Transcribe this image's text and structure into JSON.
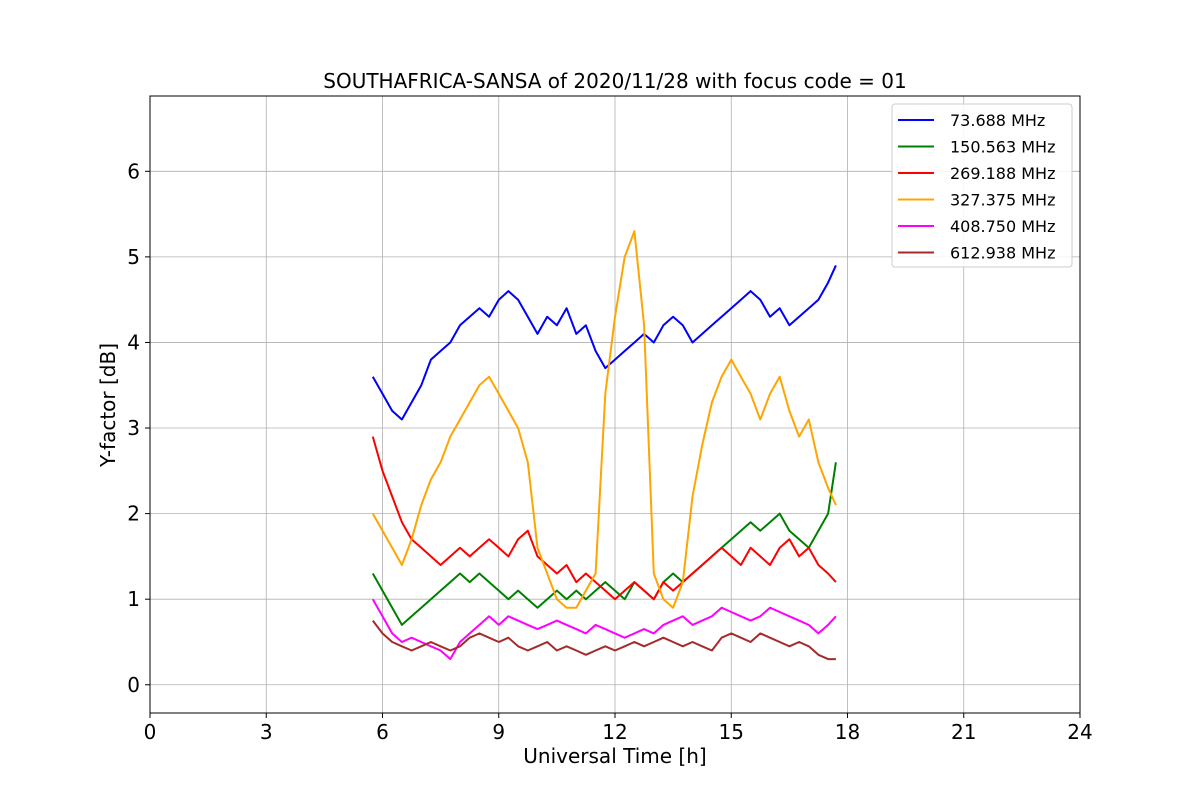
{
  "chart_data": {
    "type": "line",
    "title": "SOUTHAFRICA-SANSA of 2020/11/28 with focus code = 01",
    "xlabel": "Universal Time [h]",
    "ylabel": "Y-factor [dB]",
    "xlim": [
      0,
      24
    ],
    "ylim": [
      -0.33,
      6.88
    ],
    "xticks": [
      0,
      3,
      6,
      9,
      12,
      15,
      18,
      21,
      24
    ],
    "yticks": [
      0,
      1,
      2,
      3,
      4,
      5,
      6
    ],
    "grid": true,
    "legend_position": "top-right",
    "series": [
      {
        "name": " 73.688 MHz",
        "color": "#0000ff",
        "x": [
          5.75,
          6.0,
          6.25,
          6.5,
          6.75,
          7.0,
          7.25,
          7.5,
          7.75,
          8.0,
          8.25,
          8.5,
          8.75,
          9.0,
          9.25,
          9.5,
          9.75,
          10.0,
          10.25,
          10.5,
          10.75,
          11.0,
          11.25,
          11.5,
          11.75,
          12.0,
          12.25,
          12.5,
          12.75,
          13.0,
          13.25,
          13.5,
          13.75,
          14.0,
          14.25,
          14.5,
          14.75,
          15.0,
          15.25,
          15.5,
          15.75,
          16.0,
          16.25,
          16.5,
          16.75,
          17.0,
          17.25,
          17.5,
          17.7
        ],
        "y": [
          3.6,
          3.4,
          3.2,
          3.1,
          3.3,
          3.5,
          3.8,
          3.9,
          4.0,
          4.2,
          4.3,
          4.4,
          4.3,
          4.5,
          4.6,
          4.5,
          4.3,
          4.1,
          4.3,
          4.2,
          4.4,
          4.1,
          4.2,
          3.9,
          3.7,
          3.8,
          3.9,
          4.0,
          4.1,
          4.0,
          4.2,
          4.3,
          4.2,
          4.0,
          4.1,
          4.2,
          4.3,
          4.4,
          4.5,
          4.6,
          4.5,
          4.3,
          4.4,
          4.2,
          4.3,
          4.4,
          4.5,
          4.7,
          4.9
        ]
      },
      {
        "name": "150.563 MHz",
        "color": "#008000",
        "x": [
          5.75,
          6.0,
          6.25,
          6.5,
          6.75,
          7.0,
          7.25,
          7.5,
          7.75,
          8.0,
          8.25,
          8.5,
          8.75,
          9.0,
          9.25,
          9.5,
          9.75,
          10.0,
          10.25,
          10.5,
          10.75,
          11.0,
          11.25,
          11.5,
          11.75,
          12.0,
          12.25,
          12.5,
          12.75,
          13.0,
          13.25,
          13.5,
          13.75,
          14.0,
          14.25,
          14.5,
          14.75,
          15.0,
          15.25,
          15.5,
          15.75,
          16.0,
          16.25,
          16.5,
          16.75,
          17.0,
          17.25,
          17.5,
          17.7
        ],
        "y": [
          1.3,
          1.1,
          0.9,
          0.7,
          0.8,
          0.9,
          1.0,
          1.1,
          1.2,
          1.3,
          1.2,
          1.3,
          1.2,
          1.1,
          1.0,
          1.1,
          1.0,
          0.9,
          1.0,
          1.1,
          1.0,
          1.1,
          1.0,
          1.1,
          1.2,
          1.1,
          1.0,
          1.2,
          1.1,
          1.0,
          1.2,
          1.3,
          1.2,
          1.3,
          1.4,
          1.5,
          1.6,
          1.7,
          1.8,
          1.9,
          1.8,
          1.9,
          2.0,
          1.8,
          1.7,
          1.6,
          1.8,
          2.0,
          2.6
        ]
      },
      {
        "name": "269.188 MHz",
        "color": "#ff0000",
        "x": [
          5.75,
          6.0,
          6.25,
          6.5,
          6.75,
          7.0,
          7.25,
          7.5,
          7.75,
          8.0,
          8.25,
          8.5,
          8.75,
          9.0,
          9.25,
          9.5,
          9.75,
          10.0,
          10.25,
          10.5,
          10.75,
          11.0,
          11.25,
          11.5,
          11.75,
          12.0,
          12.25,
          12.5,
          12.75,
          13.0,
          13.25,
          13.5,
          13.75,
          14.0,
          14.25,
          14.5,
          14.75,
          15.0,
          15.25,
          15.5,
          15.75,
          16.0,
          16.25,
          16.5,
          16.75,
          17.0,
          17.25,
          17.5,
          17.7
        ],
        "y": [
          2.9,
          2.5,
          2.2,
          1.9,
          1.7,
          1.6,
          1.5,
          1.4,
          1.5,
          1.6,
          1.5,
          1.6,
          1.7,
          1.6,
          1.5,
          1.7,
          1.8,
          1.5,
          1.4,
          1.3,
          1.4,
          1.2,
          1.3,
          1.2,
          1.1,
          1.0,
          1.1,
          1.2,
          1.1,
          1.0,
          1.2,
          1.1,
          1.2,
          1.3,
          1.4,
          1.5,
          1.6,
          1.5,
          1.4,
          1.6,
          1.5,
          1.4,
          1.6,
          1.7,
          1.5,
          1.6,
          1.4,
          1.3,
          1.2
        ]
      },
      {
        "name": "327.375 MHz",
        "color": "#ffa500",
        "x": [
          5.75,
          6.0,
          6.25,
          6.5,
          6.75,
          7.0,
          7.25,
          7.5,
          7.75,
          8.0,
          8.25,
          8.5,
          8.75,
          9.0,
          9.25,
          9.5,
          9.75,
          10.0,
          10.25,
          10.5,
          10.75,
          11.0,
          11.25,
          11.5,
          11.75,
          12.0,
          12.25,
          12.5,
          12.75,
          13.0,
          13.25,
          13.5,
          13.75,
          14.0,
          14.25,
          14.5,
          14.75,
          15.0,
          15.25,
          15.5,
          15.75,
          16.0,
          16.25,
          16.5,
          16.75,
          17.0,
          17.25,
          17.5,
          17.7
        ],
        "y": [
          2.0,
          1.8,
          1.6,
          1.4,
          1.7,
          2.1,
          2.4,
          2.6,
          2.9,
          3.1,
          3.3,
          3.5,
          3.6,
          3.4,
          3.2,
          3.0,
          2.6,
          1.6,
          1.3,
          1.0,
          0.9,
          0.9,
          1.1,
          1.3,
          3.4,
          4.3,
          5.0,
          5.3,
          4.2,
          1.3,
          1.0,
          0.9,
          1.2,
          2.2,
          2.8,
          3.3,
          3.6,
          3.8,
          3.6,
          3.4,
          3.1,
          3.4,
          3.6,
          3.2,
          2.9,
          3.1,
          2.6,
          2.3,
          2.1
        ]
      },
      {
        "name": "408.750 MHz",
        "color": "#ff00ff",
        "x": [
          5.75,
          6.0,
          6.25,
          6.5,
          6.75,
          7.0,
          7.25,
          7.5,
          7.75,
          8.0,
          8.25,
          8.5,
          8.75,
          9.0,
          9.25,
          9.5,
          9.75,
          10.0,
          10.25,
          10.5,
          10.75,
          11.0,
          11.25,
          11.5,
          11.75,
          12.0,
          12.25,
          12.5,
          12.75,
          13.0,
          13.25,
          13.5,
          13.75,
          14.0,
          14.25,
          14.5,
          14.75,
          15.0,
          15.25,
          15.5,
          15.75,
          16.0,
          16.25,
          16.5,
          16.75,
          17.0,
          17.25,
          17.5,
          17.7
        ],
        "y": [
          1.0,
          0.8,
          0.6,
          0.5,
          0.55,
          0.5,
          0.45,
          0.4,
          0.3,
          0.5,
          0.6,
          0.7,
          0.8,
          0.7,
          0.8,
          0.75,
          0.7,
          0.65,
          0.7,
          0.75,
          0.7,
          0.65,
          0.6,
          0.7,
          0.65,
          0.6,
          0.55,
          0.6,
          0.65,
          0.6,
          0.7,
          0.75,
          0.8,
          0.7,
          0.75,
          0.8,
          0.9,
          0.85,
          0.8,
          0.75,
          0.8,
          0.9,
          0.85,
          0.8,
          0.75,
          0.7,
          0.6,
          0.7,
          0.8
        ]
      },
      {
        "name": "612.938 MHz",
        "color": "#a52a2a",
        "x": [
          5.75,
          6.0,
          6.25,
          6.5,
          6.75,
          7.0,
          7.25,
          7.5,
          7.75,
          8.0,
          8.25,
          8.5,
          8.75,
          9.0,
          9.25,
          9.5,
          9.75,
          10.0,
          10.25,
          10.5,
          10.75,
          11.0,
          11.25,
          11.5,
          11.75,
          12.0,
          12.25,
          12.5,
          12.75,
          13.0,
          13.25,
          13.5,
          13.75,
          14.0,
          14.25,
          14.5,
          14.75,
          15.0,
          15.25,
          15.5,
          15.75,
          16.0,
          16.25,
          16.5,
          16.75,
          17.0,
          17.25,
          17.5,
          17.7
        ],
        "y": [
          0.75,
          0.6,
          0.5,
          0.45,
          0.4,
          0.45,
          0.5,
          0.45,
          0.4,
          0.45,
          0.55,
          0.6,
          0.55,
          0.5,
          0.55,
          0.45,
          0.4,
          0.45,
          0.5,
          0.4,
          0.45,
          0.4,
          0.35,
          0.4,
          0.45,
          0.4,
          0.45,
          0.5,
          0.45,
          0.5,
          0.55,
          0.5,
          0.45,
          0.5,
          0.45,
          0.4,
          0.55,
          0.6,
          0.55,
          0.5,
          0.6,
          0.55,
          0.5,
          0.45,
          0.5,
          0.45,
          0.35,
          0.3,
          0.3
        ]
      }
    ]
  }
}
